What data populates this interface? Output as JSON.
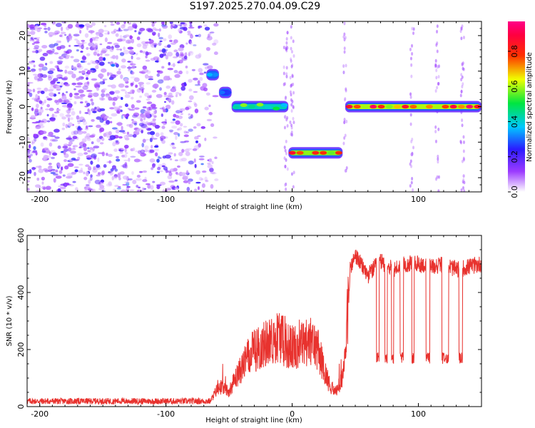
{
  "title": "S197.2025.270.04.09.C29",
  "chart_data": [
    {
      "type": "heatmap",
      "xlabel": "Height of straight line (km)",
      "ylabel": "Frequency (Hz)",
      "xlim": [
        -210,
        150
      ],
      "ylim": [
        -24,
        24
      ],
      "xticks": [
        -200,
        -100,
        0,
        100
      ],
      "yticks": [
        -20,
        -10,
        0,
        10,
        20
      ],
      "colorbar": {
        "label": "Normalized spectral amplitude",
        "range": [
          0.0,
          0.97
        ],
        "ticks": [
          "0.0",
          "0.2",
          "0.4",
          "0.6",
          "0.8"
        ],
        "colormap": "rainbow (white-purple-blue-cyan-green-yellow-red-magenta)"
      },
      "segments": [
        {
          "x_start": -210,
          "x_end": -65,
          "freq": null,
          "description": "broadband noise, amplitude < 0.2"
        },
        {
          "x_start": -68,
          "x_end": -58,
          "freq": 9,
          "amplitude": 0.4
        },
        {
          "x_start": -58,
          "x_end": -48,
          "freq": 4,
          "amplitude": 0.3
        },
        {
          "x_start": -48,
          "x_end": -3,
          "freq": 0,
          "amplitude": 0.6
        },
        {
          "x_start": -3,
          "x_end": 40,
          "freq": -13,
          "amplitude": 0.9
        },
        {
          "x_start": 42,
          "x_end": 150,
          "freq": 0,
          "amplitude": 0.95
        }
      ]
    },
    {
      "type": "line",
      "xlabel": "Height of straight line (km)",
      "ylabel": "SNR (10 * v/v)",
      "xlim": [
        -210,
        150
      ],
      "ylim": [
        0,
        600
      ],
      "xticks": [
        -200,
        -100,
        0,
        100
      ],
      "yticks": [
        0,
        200,
        400,
        600
      ],
      "series": [
        {
          "name": "SNR",
          "color": "#e8322e"
        }
      ],
      "x": [
        -210,
        -65,
        -58,
        -50,
        -45,
        -40,
        -35,
        -30,
        -25,
        -20,
        -15,
        -10,
        -5,
        0,
        5,
        10,
        15,
        20,
        25,
        30,
        35,
        40,
        43,
        46,
        50,
        60,
        70,
        80,
        90,
        100,
        110,
        120,
        130,
        140,
        150
      ],
      "values": [
        20,
        20,
        80,
        60,
        110,
        150,
        190,
        220,
        230,
        250,
        260,
        280,
        240,
        230,
        240,
        250,
        250,
        230,
        150,
        80,
        60,
        110,
        300,
        480,
        530,
        460,
        510,
        480,
        500,
        500,
        490,
        500,
        480,
        490,
        500
      ],
      "notes": "Right of x=45, SNR alternates between ~520 and ~160 in repeated drops"
    }
  ]
}
